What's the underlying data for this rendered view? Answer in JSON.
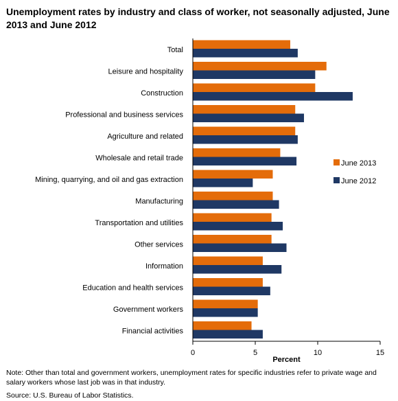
{
  "title": "Unemployment rates by industry and class of worker, not seasonally adjusted, June 2013 and June 2012",
  "note": "Note:  Other than total and government workers, unemployment rates for specific industries refer to private wage and salary workers whose last job was in that industry.",
  "source": "Source: U.S. Bureau of Labor Statistics.",
  "colors": {
    "june2013": "#E46C0A",
    "june2012": "#1F3864"
  },
  "chart_data": {
    "type": "bar",
    "orientation": "horizontal",
    "title": "Unemployment rates by industry and class of worker, not seasonally adjusted, June 2013 and June 2012",
    "xlabel": "Percent",
    "ylabel": "",
    "xlim": [
      0,
      15
    ],
    "xticks": [
      0,
      5,
      10,
      15
    ],
    "grid": false,
    "legend_position": "right",
    "categories": [
      "Total",
      "Leisure and hospitality",
      "Construction",
      "Professional and business services",
      "Agriculture and related",
      "Wholesale and retail trade",
      "Mining, quarrying, and oil and gas extraction",
      "Manufacturing",
      "Transportation and utilities",
      "Other services",
      "Information",
      "Education and health services",
      "Government workers",
      "Financial activities"
    ],
    "series": [
      {
        "name": "June 2013",
        "color": "#E46C0A",
        "values": [
          7.8,
          10.7,
          9.8,
          8.2,
          8.2,
          7.0,
          6.4,
          6.4,
          6.3,
          6.3,
          5.6,
          5.6,
          5.2,
          4.7
        ]
      },
      {
        "name": "June 2012",
        "color": "#1F3864",
        "values": [
          8.4,
          9.8,
          12.8,
          8.9,
          8.4,
          8.3,
          4.8,
          6.9,
          7.2,
          7.5,
          7.1,
          6.2,
          5.2,
          5.6
        ]
      }
    ]
  }
}
